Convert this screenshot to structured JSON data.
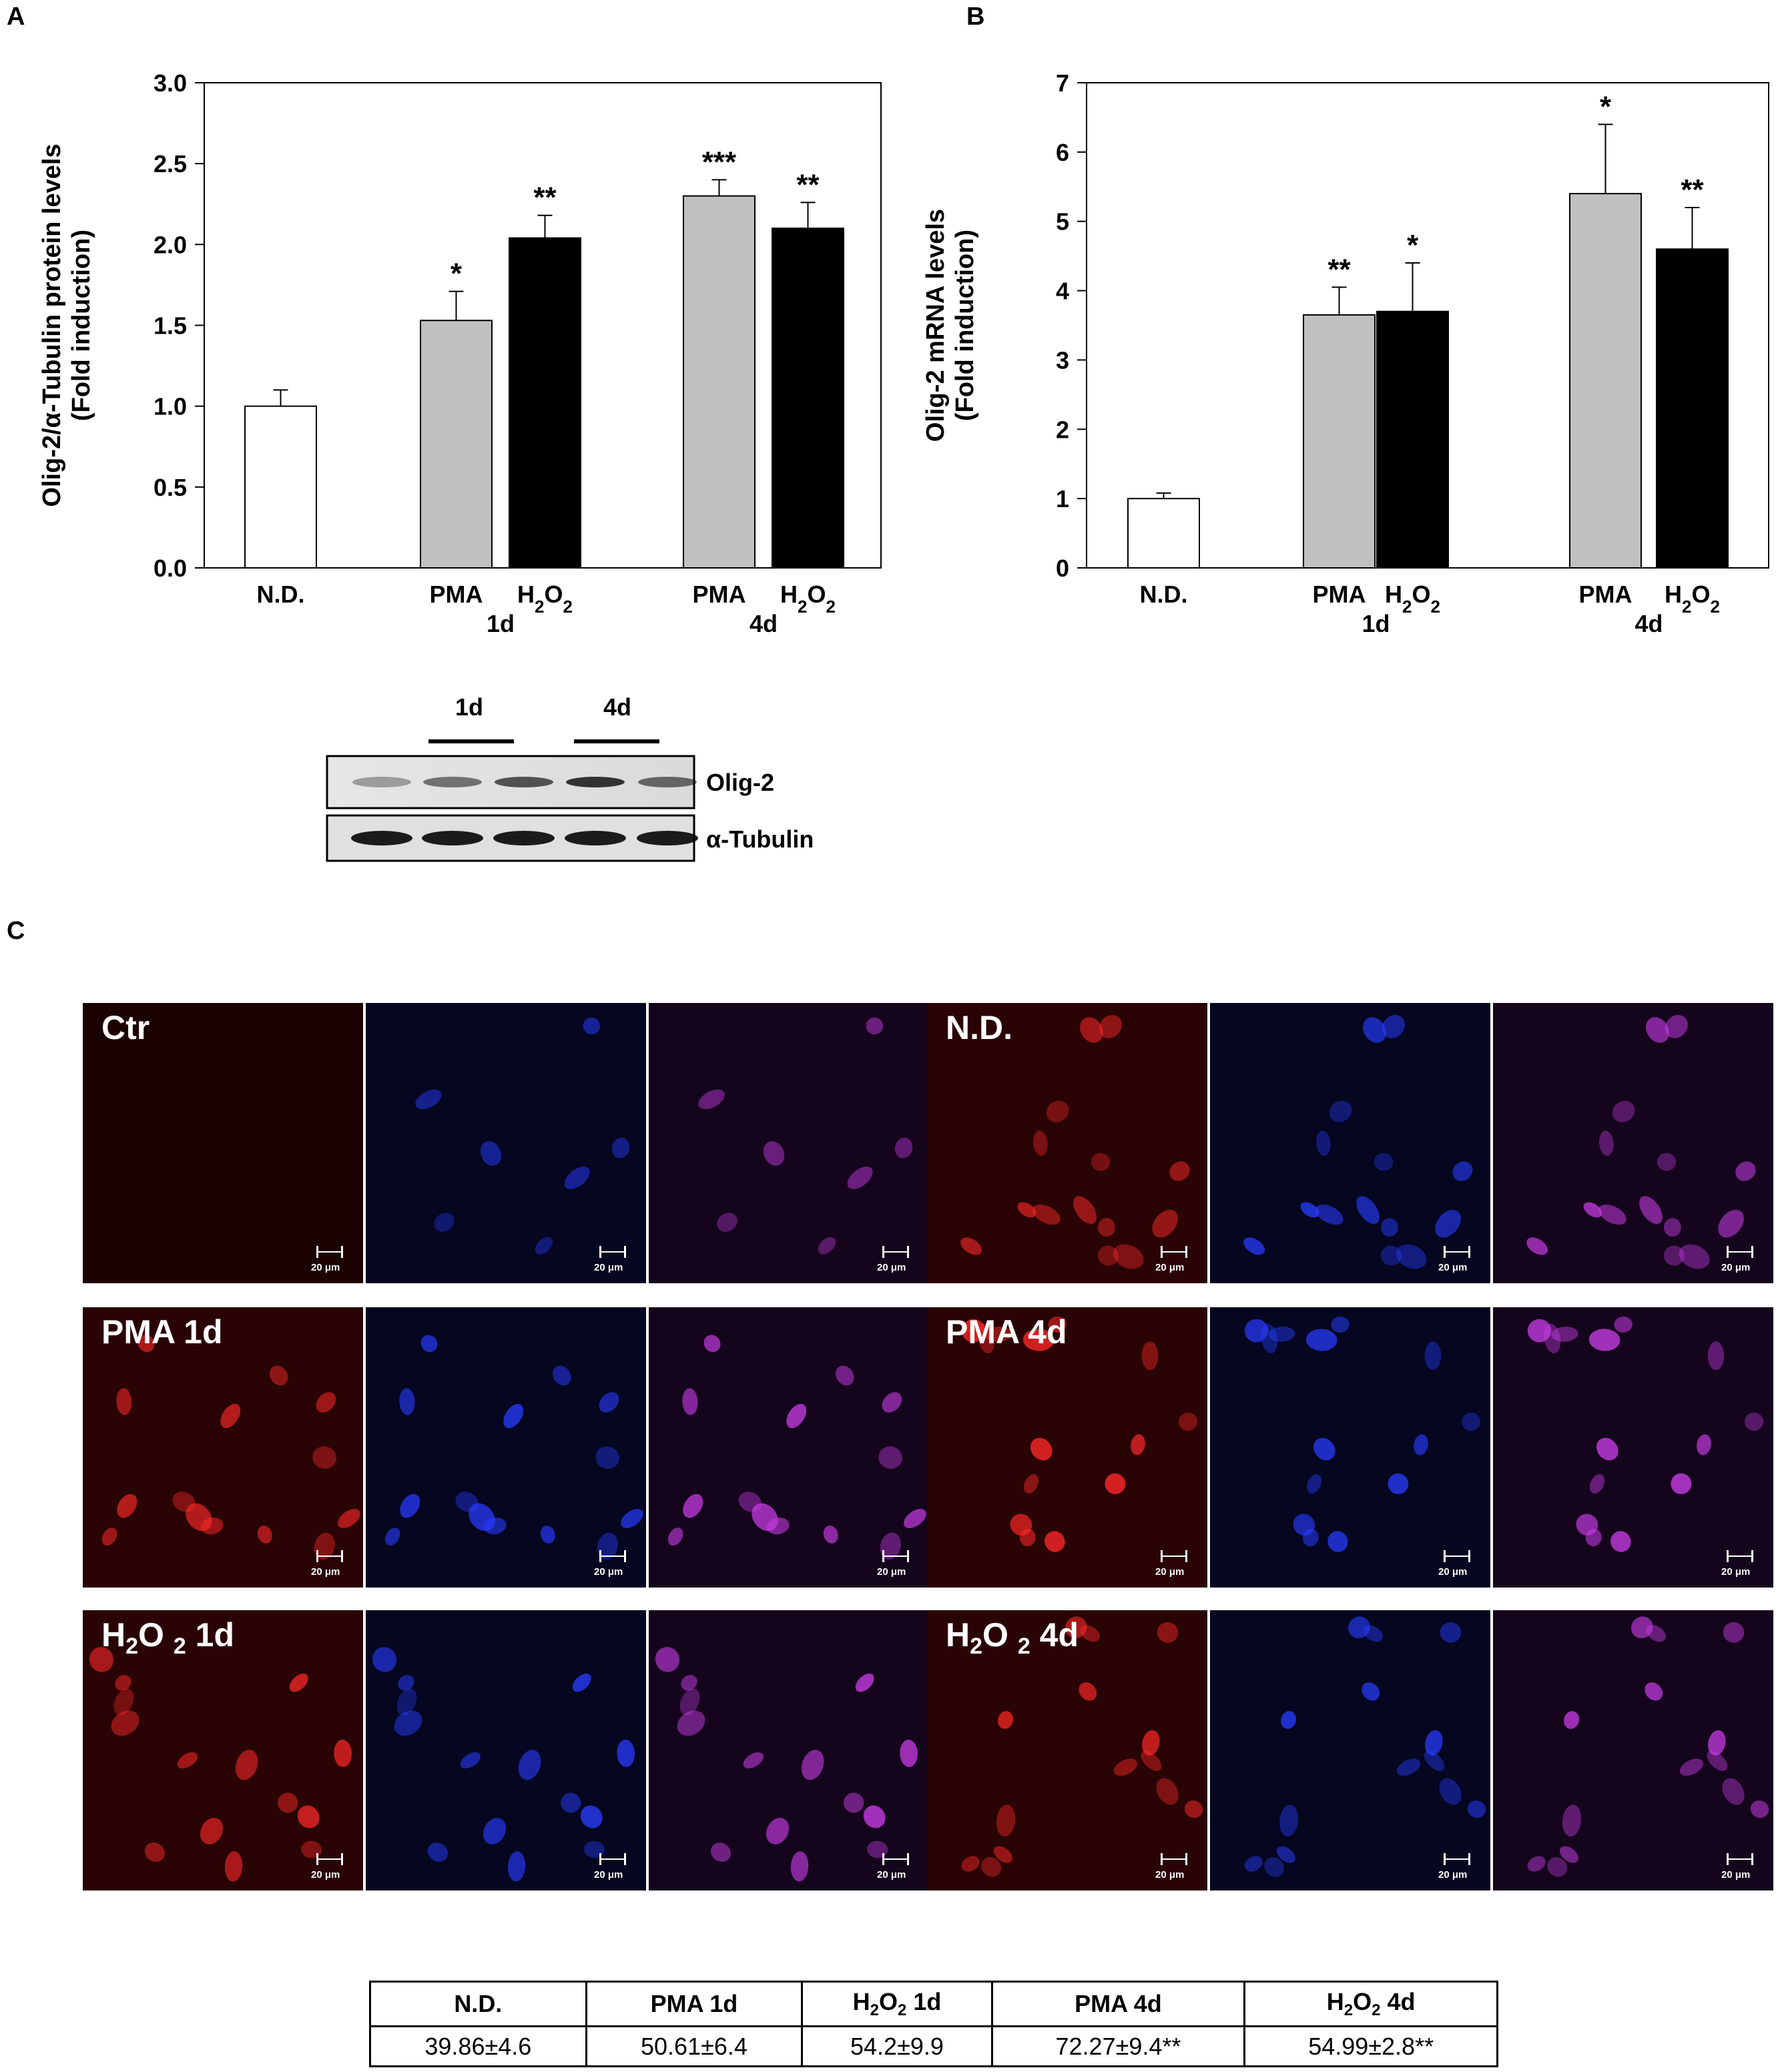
{
  "panels": {
    "A": "A",
    "B": "B",
    "C": "C"
  },
  "chart_data": [
    {
      "type": "bar",
      "panel": "A",
      "ylabel_line1": "Olig-2/α-Tubulin protein levels",
      "ylabel_line2": "(Fold induction)",
      "ylim": [
        0,
        3.0
      ],
      "yticks": [
        "0.0",
        "0.5",
        "1.0",
        "1.5",
        "2.0",
        "2.5",
        "3.0"
      ],
      "categories": [
        "N.D.",
        "PMA",
        "H2O2",
        "PMA",
        "H2O2"
      ],
      "groups": [
        "1d",
        "4d"
      ],
      "values": [
        1.0,
        1.53,
        2.04,
        2.3,
        2.1
      ],
      "errors": [
        0.1,
        0.18,
        0.14,
        0.1,
        0.16
      ],
      "significance": [
        "",
        "*",
        "**",
        "***",
        "**"
      ],
      "colors": [
        "#ffffff",
        "#c0c0c0",
        "#000000",
        "#c0c0c0",
        "#000000"
      ]
    },
    {
      "type": "bar",
      "panel": "B",
      "ylabel_line1": "Olig-2 mRNA levels",
      "ylabel_line2": "(Fold induction)",
      "ylim": [
        0,
        7
      ],
      "yticks": [
        "0",
        "1",
        "2",
        "3",
        "4",
        "5",
        "6",
        "7"
      ],
      "categories": [
        "N.D.",
        "PMA",
        "H2O2",
        "PMA",
        "H2O2"
      ],
      "groups": [
        "1d",
        "4d"
      ],
      "values": [
        1.0,
        3.65,
        3.7,
        5.4,
        4.6
      ],
      "errors": [
        0.08,
        0.4,
        0.7,
        1.0,
        0.6
      ],
      "significance": [
        "",
        "**",
        "*",
        "*",
        "**"
      ],
      "colors": [
        "#ffffff",
        "#c0c0c0",
        "#000000",
        "#c0c0c0",
        "#000000"
      ]
    }
  ],
  "western_blot": {
    "group_labels": [
      "1d",
      "4d"
    ],
    "rows": [
      "Olig-2",
      "α-Tubulin"
    ]
  },
  "microscopy": {
    "scale_label": "20 μm",
    "conditions": [
      {
        "main": "Ctr",
        "sub": "",
        "tail": ""
      },
      {
        "main": "N.D.",
        "sub": "",
        "tail": ""
      },
      {
        "main": "PMA 1d",
        "sub": "",
        "tail": ""
      },
      {
        "main": "PMA 4d",
        "sub": "",
        "tail": ""
      },
      {
        "main": "H",
        "sub": "2",
        "main2": "O ",
        "sub2": "2",
        "tail": " 1d"
      },
      {
        "main": "H",
        "sub": "2",
        "main2": "O ",
        "sub2": "2",
        "tail": " 4d"
      }
    ],
    "nuclei_level": {
      "Ctr": [
        0.0,
        0.4,
        0.3
      ],
      "N.D.": [
        0.5,
        0.8,
        0.7
      ],
      "PMA 1d": [
        0.6,
        0.8,
        0.8
      ],
      "PMA 4d": [
        0.9,
        0.8,
        0.9
      ],
      "H2O2 1d": [
        0.7,
        0.8,
        0.8
      ],
      "H2O2 4d": [
        0.7,
        0.8,
        0.8
      ]
    }
  },
  "summary_table": {
    "headers": [
      {
        "a": "N.D.",
        "sub": "",
        "b": ""
      },
      {
        "a": "PMA 1d",
        "sub": "",
        "b": ""
      },
      {
        "a": "H",
        "sub": "2",
        "b": "O",
        "sub2": "2",
        "c": " 1d"
      },
      {
        "a": "PMA 4d",
        "sub": "",
        "b": ""
      },
      {
        "a": "H",
        "sub": "2",
        "b": "O",
        "sub2": "2",
        "c": " 4d"
      }
    ],
    "values": [
      "39.86±4.6",
      "50.61±6.4",
      "54.2±9.9",
      "72.27±9.4**",
      "54.99±2.8**"
    ]
  }
}
